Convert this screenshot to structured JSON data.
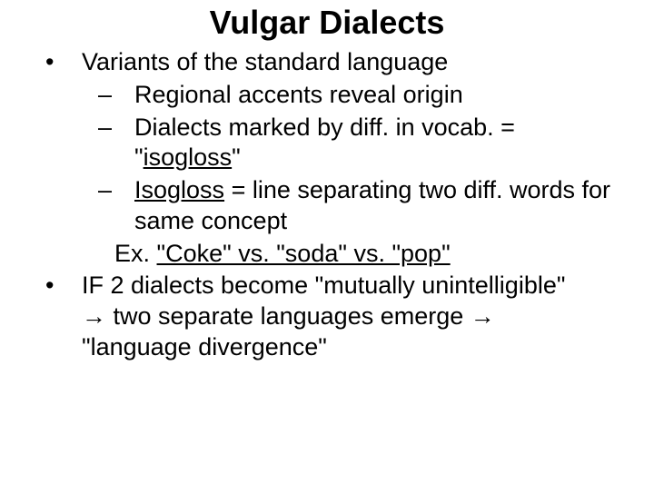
{
  "title": "Vulgar Dialects",
  "b1": "Variants of the standard language",
  "b2a": "Regional accents reveal origin",
  "b2b_pre": "Dialects marked by diff. in vocab. = \"",
  "b2b_u": "isogloss",
  "b2b_post": "\"",
  "b2c_u": "Isogloss",
  "b2c_post": " = line separating two diff. words for same concept",
  "ex_label": "Ex. ",
  "ex_u": "\"Coke\" vs. \"soda\" vs. \"pop\"",
  "b3_line1": "IF 2 dialects become \"mutually unintelligible\"",
  "b3_line2a": " two separate languages emerge ",
  "b3_line3": "\"language divergence\"",
  "arrow": "→",
  "colors": {
    "text": "#000000",
    "background": "#ffffff"
  },
  "fontsizes": {
    "title": 36,
    "body": 27
  }
}
